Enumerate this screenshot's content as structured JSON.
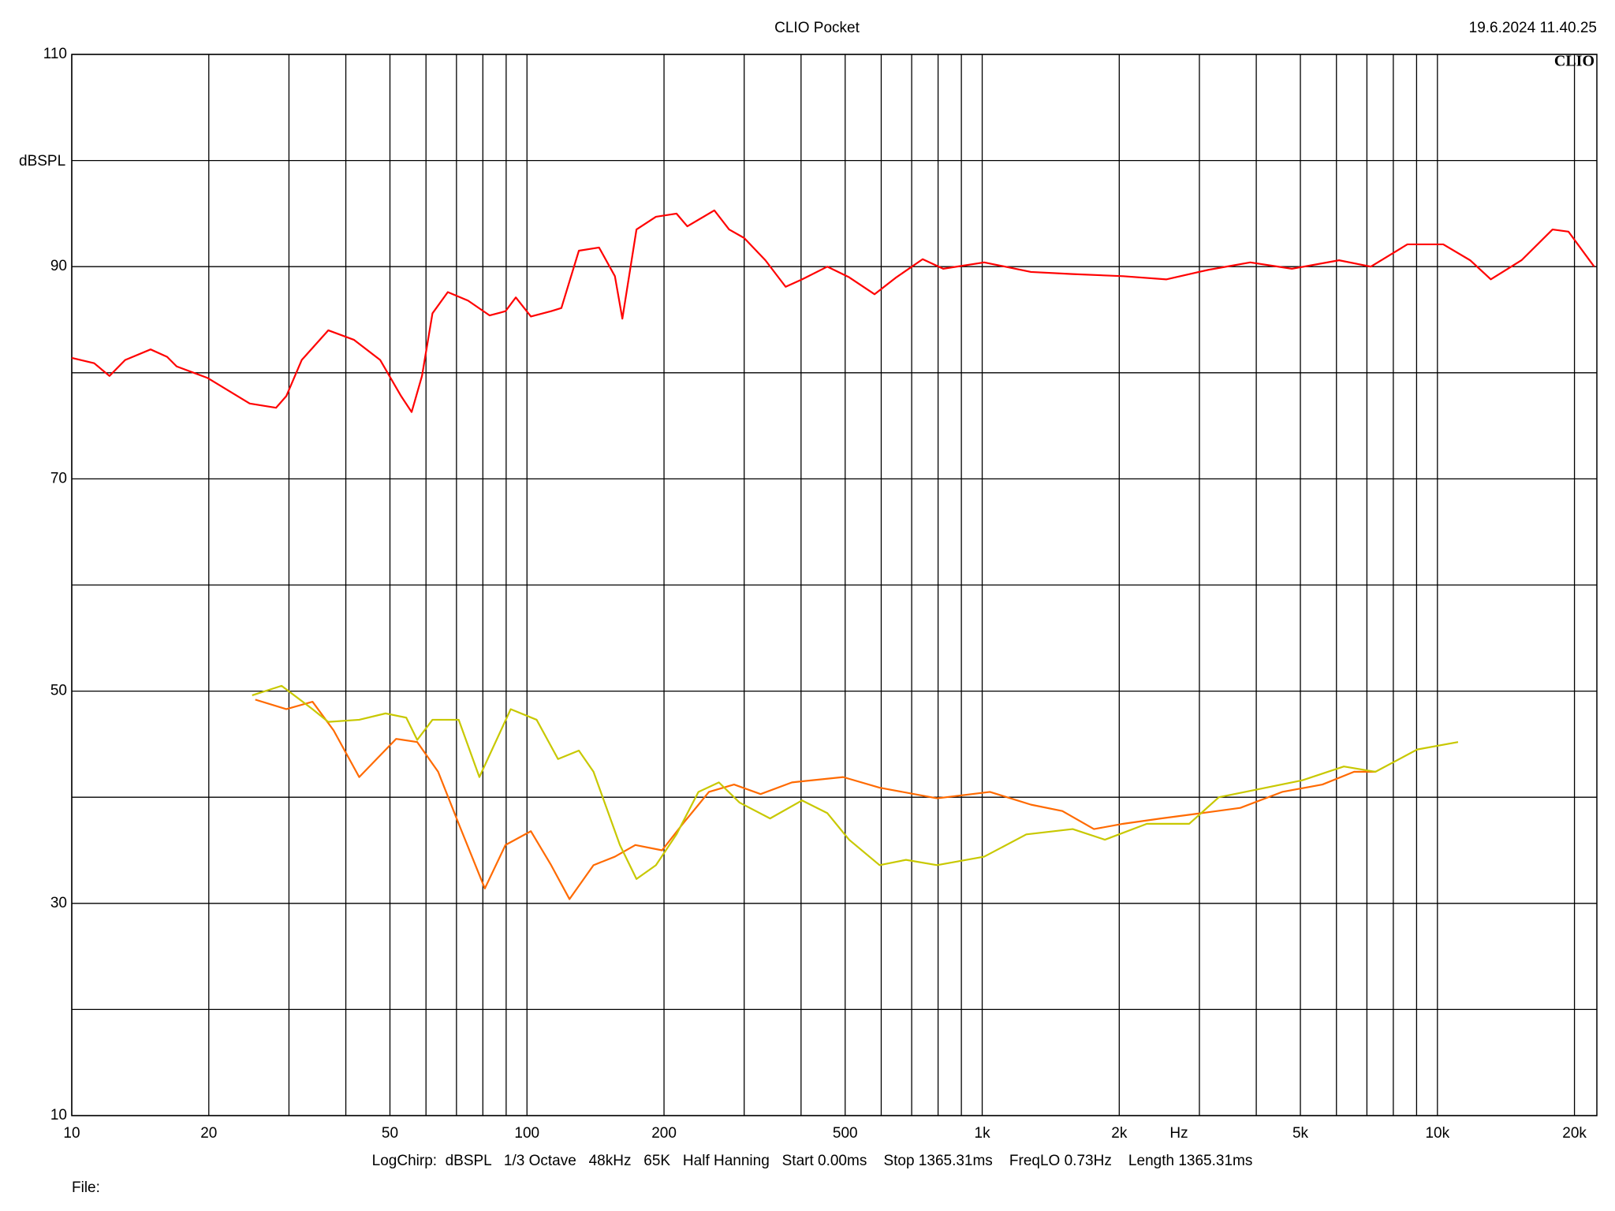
{
  "chart_data": {
    "type": "line",
    "title": "CLIO Pocket",
    "timestamp": "19.6.2024 11.40.25",
    "logo": "CLIO",
    "y_label": "dBSPL",
    "x_label": "Hz",
    "footer": "LogChirp:  dBSPL   1/3 Octave   48kHz   65K   Half Hanning   Start 0.00ms    Stop 1365.31ms    FreqLO 0.73Hz    Length 1365.31ms",
    "file_label": "File:",
    "xscale": "log",
    "grid": true,
    "xlim": [
      10,
      22400
    ],
    "ylim": [
      10,
      110
    ],
    "xticks": [
      10,
      20,
      50,
      100,
      200,
      500,
      {
        "value": 1000,
        "label": "1k"
      },
      {
        "value": 2000,
        "label": "2k"
      },
      {
        "value": 5000,
        "label": "5k"
      },
      {
        "value": 10000,
        "label": "10k"
      },
      {
        "value": 20000,
        "label": "20k"
      }
    ],
    "xminor": [
      30,
      40,
      60,
      70,
      80,
      90,
      300,
      400,
      600,
      700,
      800,
      900,
      3000,
      4000,
      6000,
      7000,
      8000,
      9000
    ],
    "yticks": [
      10,
      30,
      50,
      70,
      90,
      110
    ],
    "yminor": [
      20,
      40,
      60,
      80,
      100
    ],
    "series": [
      {
        "color": "#ff0000",
        "x": [
          10,
          11.2,
          12.1,
          13.1,
          14.9,
          16.2,
          17.0,
          19.9,
          24.6,
          28.1,
          29.6,
          32.0,
          36.6,
          41.7,
          47.6,
          52.9,
          55.8,
          58.8,
          62.0,
          67.0,
          74.2,
          82.8,
          89.7,
          94.5,
          102,
          113,
          119,
          130,
          144,
          156,
          162,
          174,
          192,
          213,
          225,
          258,
          278,
          300,
          334,
          370,
          402,
          457,
          510,
          580,
          648,
          740,
          821,
          1010,
          1280,
          1580,
          2040,
          2540,
          3140,
          3880,
          4790,
          6080,
          7140,
          8590,
          10300,
          11800,
          13100,
          15300,
          17900,
          19400,
          22100
        ],
        "values": [
          81.4,
          80.9,
          79.7,
          81.2,
          82.2,
          81.5,
          80.6,
          79.5,
          77.1,
          76.7,
          77.8,
          81.2,
          84.0,
          83.1,
          81.2,
          77.8,
          76.3,
          79.7,
          85.6,
          87.6,
          86.8,
          85.4,
          85.8,
          87.1,
          85.3,
          85.8,
          86.1,
          91.5,
          91.8,
          89.1,
          85.1,
          93.5,
          94.7,
          95.0,
          93.8,
          95.3,
          93.5,
          92.7,
          90.6,
          88.1,
          88.8,
          90.0,
          89.0,
          87.4,
          89.0,
          90.7,
          89.8,
          90.4,
          89.5,
          89.3,
          89.1,
          88.8,
          89.7,
          90.4,
          89.8,
          90.6,
          90.0,
          92.1,
          92.1,
          90.6,
          88.8,
          90.6,
          93.5,
          93.3,
          90.0
        ]
      },
      {
        "color": "#ff6a00",
        "x": [
          25.3,
          29.6,
          33.8,
          37.6,
          42.8,
          51.6,
          57.4,
          63.8,
          70.8,
          80.8,
          89.7,
          102,
          113,
          124,
          140,
          156,
          173,
          198,
          220,
          251,
          285,
          326,
          382,
          495,
          595,
          796,
          1040,
          1280,
          1500,
          1760,
          2040,
          2470,
          3030,
          3690,
          4560,
          5590,
          6560,
          7315
        ],
        "values": [
          49.2,
          48.3,
          49.0,
          46.3,
          41.9,
          45.5,
          45.2,
          42.4,
          37.5,
          31.4,
          35.5,
          36.8,
          33.6,
          30.4,
          33.6,
          34.4,
          35.5,
          35.0,
          37.5,
          40.5,
          41.2,
          40.3,
          41.4,
          41.9,
          40.9,
          39.9,
          40.5,
          39.3,
          38.7,
          37.0,
          37.5,
          38.0,
          38.5,
          39.0,
          40.5,
          41.2,
          42.4,
          42.4
        ]
      },
      {
        "color": "#c8c800",
        "x": [
          24.9,
          28.9,
          33.8,
          36.6,
          42.8,
          48.9,
          54.3,
          57.4,
          62.0,
          70.8,
          78.6,
          92.1,
          105,
          117,
          130,
          140,
          160,
          174,
          192,
          213,
          238,
          264,
          293,
          342,
          402,
          457,
          510,
          595,
          680,
          796,
          1010,
          1250,
          1580,
          1860,
          2300,
          2850,
          3310,
          4090,
          5050,
          6230,
          7310,
          9030,
          11100
        ],
        "values": [
          49.6,
          50.5,
          48.3,
          47.1,
          47.3,
          47.9,
          47.5,
          45.4,
          47.3,
          47.3,
          41.9,
          48.3,
          47.3,
          43.6,
          44.4,
          42.4,
          35.5,
          32.3,
          33.6,
          36.5,
          40.5,
          41.4,
          39.5,
          38.0,
          39.7,
          38.5,
          36.0,
          33.6,
          34.1,
          33.6,
          34.4,
          36.5,
          37.0,
          36.0,
          37.5,
          37.5,
          40.0,
          40.8,
          41.6,
          42.9,
          42.4,
          44.5,
          45.2
        ]
      }
    ]
  }
}
